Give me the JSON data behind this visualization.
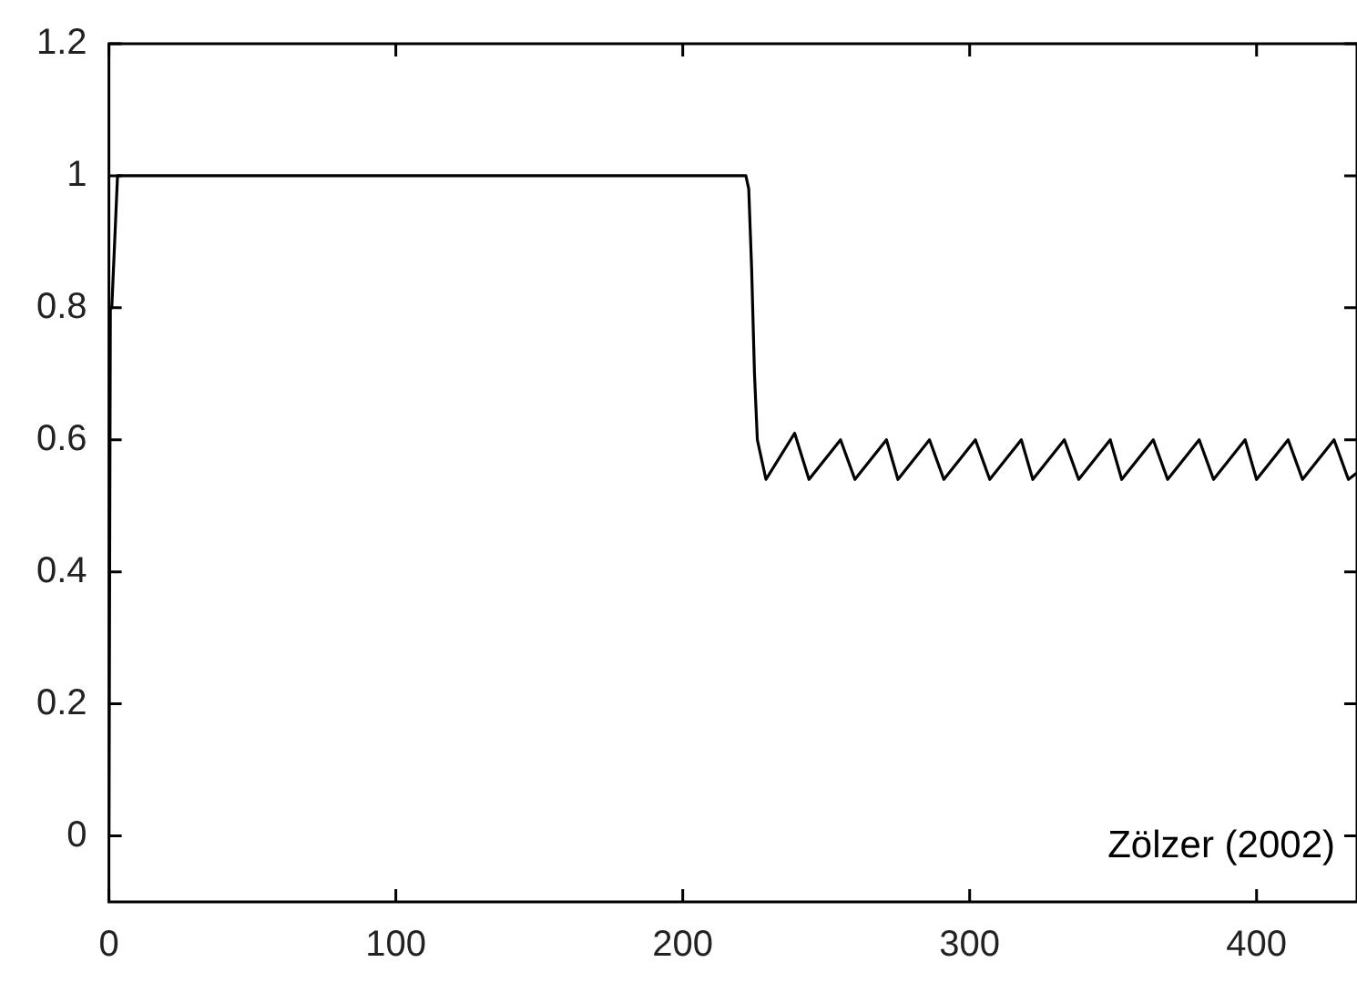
{
  "chart_data": {
    "type": "line",
    "color": "#000000",
    "x": [
      0,
      0.5,
      1,
      3,
      222,
      223,
      224,
      225,
      226,
      229,
      239,
      244,
      255,
      260,
      271,
      275,
      286,
      291,
      302,
      307,
      318,
      322,
      333,
      338,
      349,
      353,
      364,
      369,
      380,
      385,
      396,
      400,
      411,
      416,
      427,
      432,
      435
    ],
    "values": [
      0,
      0.8,
      0.8,
      1,
      1,
      0.98,
      0.86,
      0.7,
      0.6,
      0.54,
      0.61,
      0.54,
      0.6,
      0.54,
      0.6,
      0.54,
      0.6,
      0.54,
      0.6,
      0.54,
      0.6,
      0.54,
      0.6,
      0.54,
      0.6,
      0.54,
      0.6,
      0.54,
      0.6,
      0.54,
      0.6,
      0.54,
      0.6,
      0.54,
      0.6,
      0.54,
      0.55
    ],
    "xlim": [
      0,
      435
    ],
    "xticks": [
      0,
      100,
      200,
      300,
      400
    ],
    "ylim": [
      -0.1,
      1.2
    ],
    "yticks": [
      0,
      0.2,
      0.4,
      0.6,
      0.8,
      1,
      1.2
    ],
    "grid": false,
    "legend": false,
    "marker": "none",
    "line_style": "solid",
    "annotations": [
      "Zölzer (2002)"
    ]
  }
}
